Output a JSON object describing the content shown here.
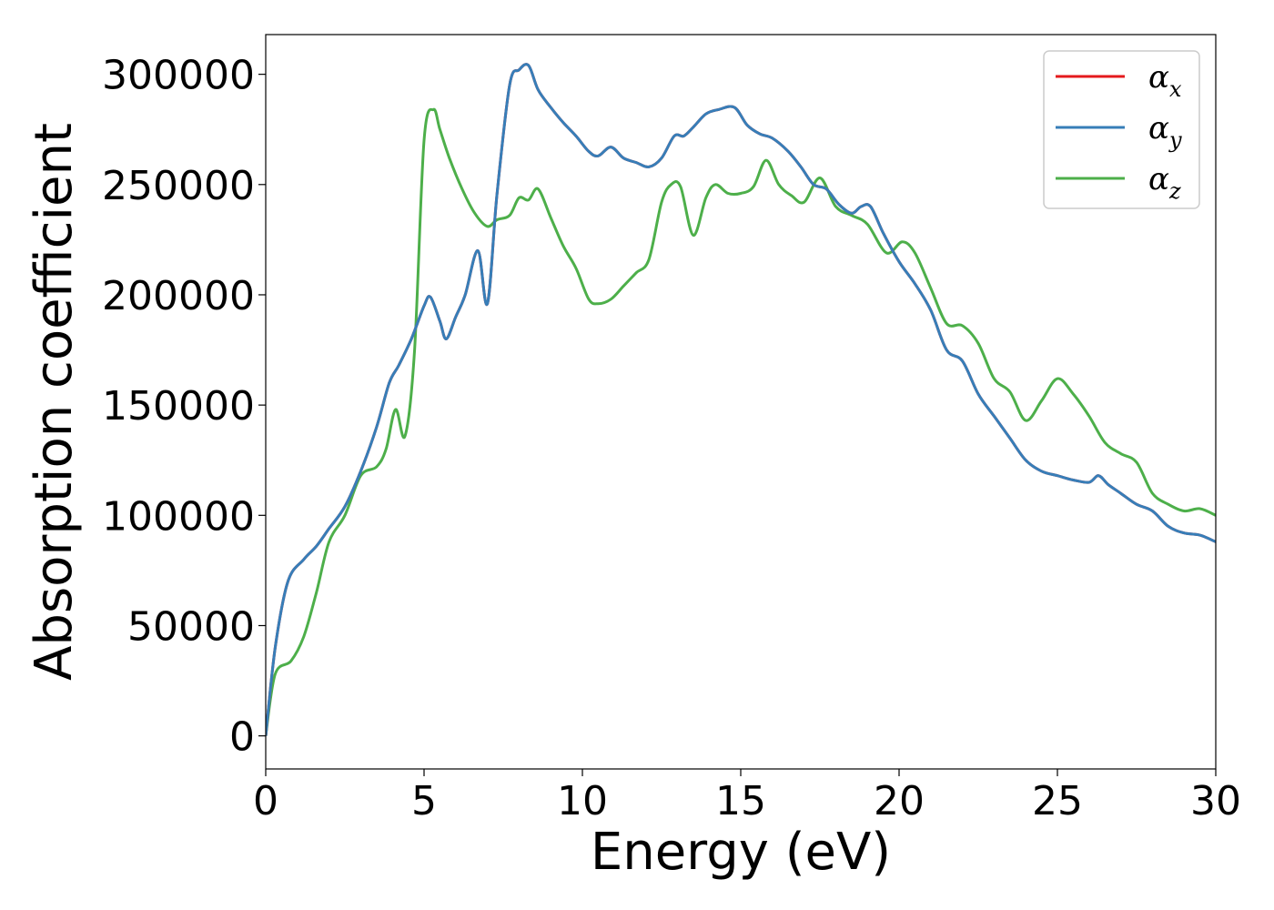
{
  "chart_data": {
    "type": "line",
    "title": "",
    "xlabel": "Energy (eV)",
    "ylabel": "Absorption coefficient",
    "xlim": [
      0,
      30
    ],
    "ylim": [
      -15000,
      318000
    ],
    "x_ticks": [
      0,
      5,
      10,
      15,
      20,
      25,
      30
    ],
    "y_ticks": [
      0,
      50000,
      100000,
      150000,
      200000,
      250000,
      300000
    ],
    "grid": false,
    "legend": "top-right",
    "series": [
      {
        "name": "α_x",
        "label_main": "α",
        "label_sub": "x",
        "color": "#e41a1c",
        "x": [
          0,
          0.3,
          0.7,
          1.2,
          1.6,
          2.0,
          2.5,
          3.0,
          3.5,
          3.9,
          4.2,
          4.6,
          5.0,
          5.2,
          5.5,
          5.7,
          6.0,
          6.3,
          6.7,
          7.0,
          7.3,
          7.7,
          8.0,
          8.3,
          8.6,
          9.0,
          9.4,
          9.8,
          10.2,
          10.5,
          10.9,
          11.3,
          11.7,
          12.1,
          12.5,
          12.9,
          13.2,
          13.5,
          13.9,
          14.3,
          14.8,
          15.2,
          15.6,
          16.0,
          16.5,
          16.9,
          17.3,
          17.7,
          18.1,
          18.5,
          18.8,
          19.1,
          19.5,
          20.0,
          20.5,
          21.0,
          21.5,
          22.0,
          22.5,
          23.0,
          23.5,
          24.0,
          24.5,
          25.0,
          25.5,
          26.0,
          26.3,
          26.6,
          27.0,
          27.5,
          28.0,
          28.5,
          29.0,
          29.5,
          30.0
        ],
        "values": [
          0,
          40000,
          70000,
          80000,
          86000,
          94000,
          104000,
          120000,
          140000,
          160000,
          168000,
          180000,
          195000,
          199000,
          188000,
          180000,
          190000,
          200000,
          220000,
          196000,
          245000,
          295000,
          302000,
          304000,
          293000,
          285000,
          278000,
          272000,
          265000,
          263000,
          267000,
          262000,
          260000,
          258000,
          262000,
          272000,
          272000,
          276000,
          282000,
          284000,
          285000,
          277000,
          273000,
          271000,
          265000,
          258000,
          250000,
          248000,
          241000,
          237000,
          240000,
          240000,
          228000,
          215000,
          205000,
          193000,
          175000,
          170000,
          155000,
          145000,
          135000,
          125000,
          120000,
          118000,
          116000,
          115000,
          118000,
          114000,
          110000,
          105000,
          102000,
          95000,
          92000,
          91000,
          88000
        ]
      },
      {
        "name": "α_y",
        "label_main": "α",
        "label_sub": "y",
        "color": "#377eb8",
        "x": [
          0,
          0.3,
          0.7,
          1.2,
          1.6,
          2.0,
          2.5,
          3.0,
          3.5,
          3.9,
          4.2,
          4.6,
          5.0,
          5.2,
          5.5,
          5.7,
          6.0,
          6.3,
          6.7,
          7.0,
          7.3,
          7.7,
          8.0,
          8.3,
          8.6,
          9.0,
          9.4,
          9.8,
          10.2,
          10.5,
          10.9,
          11.3,
          11.7,
          12.1,
          12.5,
          12.9,
          13.2,
          13.5,
          13.9,
          14.3,
          14.8,
          15.2,
          15.6,
          16.0,
          16.5,
          16.9,
          17.3,
          17.7,
          18.1,
          18.5,
          18.8,
          19.1,
          19.5,
          20.0,
          20.5,
          21.0,
          21.5,
          22.0,
          22.5,
          23.0,
          23.5,
          24.0,
          24.5,
          25.0,
          25.5,
          26.0,
          26.3,
          26.6,
          27.0,
          27.5,
          28.0,
          28.5,
          29.0,
          29.5,
          30.0
        ],
        "values": [
          0,
          40000,
          70000,
          80000,
          86000,
          94000,
          104000,
          120000,
          140000,
          160000,
          168000,
          180000,
          195000,
          199000,
          188000,
          180000,
          190000,
          200000,
          220000,
          196000,
          245000,
          295000,
          302000,
          304000,
          293000,
          285000,
          278000,
          272000,
          265000,
          263000,
          267000,
          262000,
          260000,
          258000,
          262000,
          272000,
          272000,
          276000,
          282000,
          284000,
          285000,
          277000,
          273000,
          271000,
          265000,
          258000,
          250000,
          248000,
          241000,
          237000,
          240000,
          240000,
          228000,
          215000,
          205000,
          193000,
          175000,
          170000,
          155000,
          145000,
          135000,
          125000,
          120000,
          118000,
          116000,
          115000,
          118000,
          114000,
          110000,
          105000,
          102000,
          95000,
          92000,
          91000,
          88000
        ]
      },
      {
        "name": "α_z",
        "label_main": "α",
        "label_sub": "z",
        "color": "#4daf4a",
        "x": [
          0,
          0.3,
          0.8,
          1.2,
          1.6,
          2.0,
          2.5,
          3.0,
          3.5,
          3.8,
          4.1,
          4.4,
          4.7,
          5.0,
          5.3,
          5.5,
          5.8,
          6.2,
          6.6,
          7.0,
          7.3,
          7.7,
          8.0,
          8.3,
          8.6,
          9.0,
          9.4,
          9.8,
          10.2,
          10.5,
          10.9,
          11.3,
          11.7,
          12.1,
          12.5,
          12.8,
          13.1,
          13.5,
          13.9,
          14.2,
          14.6,
          15.0,
          15.4,
          15.8,
          16.2,
          16.6,
          17.0,
          17.5,
          18.0,
          18.5,
          19.0,
          19.6,
          20.1,
          20.5,
          21.0,
          21.5,
          22.0,
          22.5,
          23.0,
          23.5,
          24.0,
          24.5,
          25.0,
          25.5,
          26.0,
          26.5,
          27.0,
          27.5,
          28.0,
          28.5,
          29.0,
          29.5,
          30.0
        ],
        "values": [
          0,
          28000,
          34000,
          45000,
          65000,
          88000,
          100000,
          118000,
          122000,
          130000,
          148000,
          136000,
          175000,
          270000,
          284000,
          275000,
          262000,
          248000,
          237000,
          231000,
          234000,
          236000,
          244000,
          243000,
          248000,
          235000,
          222000,
          212000,
          198000,
          196000,
          198000,
          204000,
          210000,
          216000,
          242000,
          250000,
          249000,
          227000,
          244000,
          250000,
          246000,
          246000,
          249000,
          261000,
          250000,
          245000,
          242000,
          253000,
          240000,
          236000,
          232000,
          219000,
          224000,
          219000,
          203000,
          187000,
          186000,
          178000,
          162000,
          156000,
          143000,
          152000,
          162000,
          155000,
          145000,
          133000,
          128000,
          124000,
          110000,
          105000,
          102000,
          103000,
          100000
        ]
      }
    ]
  }
}
